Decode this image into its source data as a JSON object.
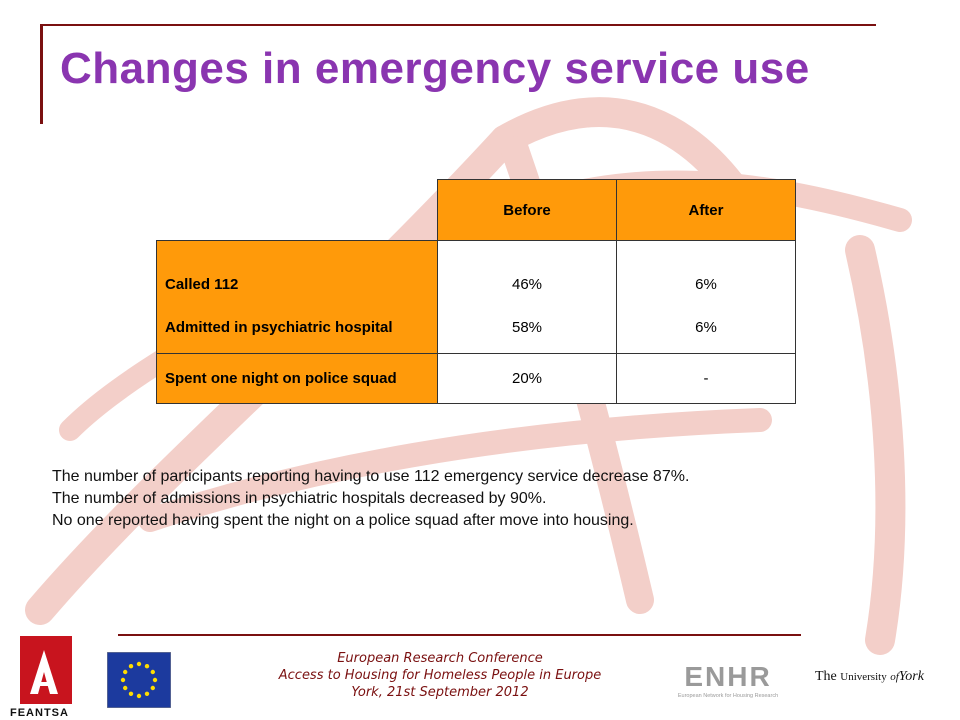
{
  "slide": {
    "title": "Changes in emergency service use"
  },
  "table": {
    "headers": [
      "Before",
      "After"
    ],
    "rows": [
      {
        "label": "Called 112",
        "before": "46%",
        "after": "6%"
      },
      {
        "label": "Admitted in psychiatric hospital",
        "before": "58%",
        "after": "6%"
      },
      {
        "label": "Spent one night on police squad",
        "before": "20%",
        "after": "-"
      }
    ]
  },
  "paragraph": {
    "lines": [
      "The number of participants reporting having to use 112 emergency service decrease 87%.",
      "The number of admissions in psychiatric hospitals decreased by 90%.",
      "No one reported having spent the night on a police squad after move into housing."
    ]
  },
  "footer": {
    "line1": "European Research Conference",
    "line2": "Access to Housing for Homeless People in Europe",
    "line3": "York, 21st September 2012"
  },
  "logos": {
    "feantsa": "FEANTSA",
    "enhr_main": "ENHR",
    "enhr_sub": "European Network for Housing Research",
    "york_the": "The",
    "york_university": "University",
    "york_of": "of",
    "york_name": "York"
  },
  "colors": {
    "title": "#8a35b0",
    "table_fill": "#ff9a0a",
    "accent_rule": "#7a1010",
    "background_mark": "#f2c8c2"
  }
}
